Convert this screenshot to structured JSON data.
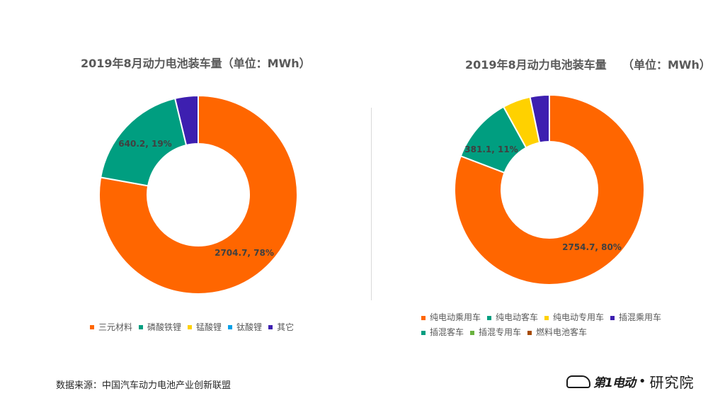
{
  "chart_data": [
    {
      "type": "pie",
      "title": "2019年8月动力电池装车量（单位：MWh）",
      "categories": [
        "三元材料",
        "磷酸铁锂",
        "锰酸锂",
        "钛酸锂",
        "其它"
      ],
      "values": [
        2704.7,
        640.2,
        0,
        0,
        131
      ],
      "colors": [
        "#FF6600",
        "#009E80",
        "#FFD100",
        "#00A0E9",
        "#3D1FB0"
      ],
      "data_labels": [
        "2704.7, 78%",
        "640.2, 19%",
        "",
        "",
        ""
      ],
      "legend_placement": "bottom"
    },
    {
      "type": "pie",
      "title": "2019年8月动力电池装车量    （单位：MWh）",
      "categories": [
        "纯电动乘用车",
        "纯电动客车",
        "纯电动专用车",
        "插混乘用车",
        "插混客车",
        "插混专用车",
        "燃料电池客车"
      ],
      "values": [
        2754.7,
        381.1,
        162,
        112,
        0,
        0,
        0
      ],
      "colors": [
        "#FF6600",
        "#009E80",
        "#FFD100",
        "#3D1FB0",
        "#009E80",
        "#6AB23F",
        "#A64B00"
      ],
      "data_labels": [
        "2754.7, 80%",
        "381.1, 11%",
        "",
        "",
        "",
        "",
        ""
      ],
      "legend_placement": "bottom"
    }
  ],
  "source_text": "数据来源：中国汽车动力电池产业创新联盟",
  "logo": {
    "brand": "第1电动",
    "separator": "•",
    "org": "研究院"
  }
}
